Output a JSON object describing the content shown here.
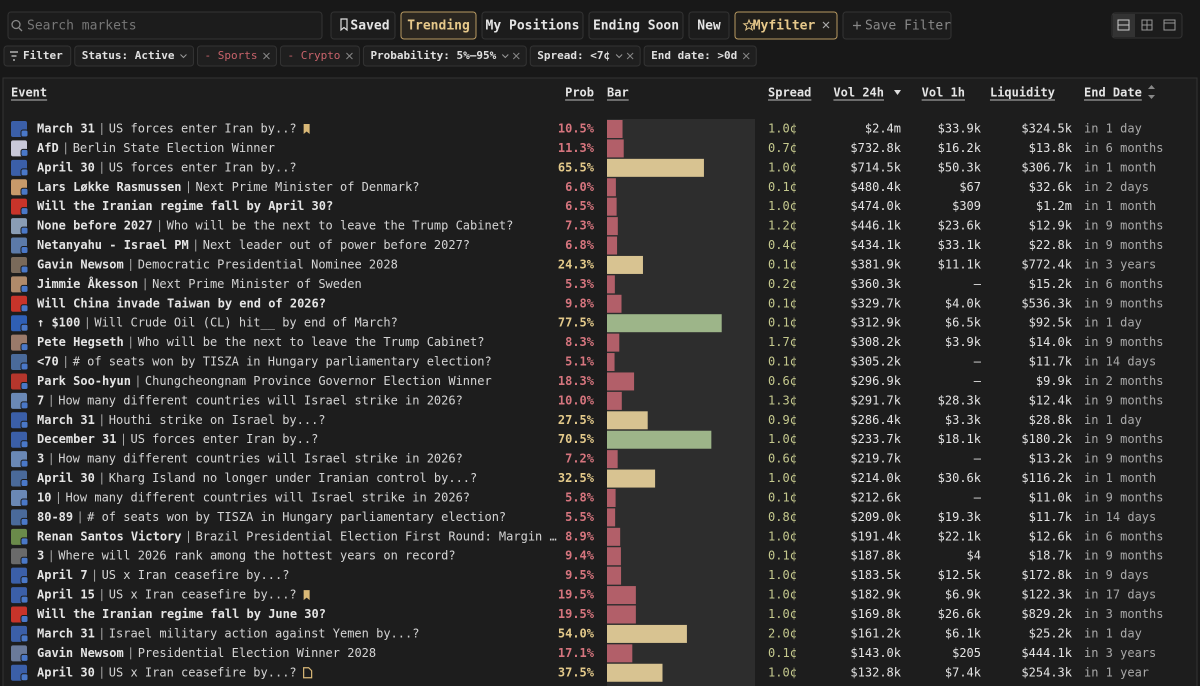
{
  "toolbar": {
    "search_placeholder": "Search markets",
    "tabs": [
      "Saved",
      "Trending",
      "My Positions",
      "Ending Soon",
      "New",
      "Myfilter",
      "Save Filter"
    ],
    "active_tab": "Trending",
    "saved_filter": "Myfilter"
  },
  "filters": [
    "Filter",
    "Status: Active",
    "- Sports",
    "- Crypto",
    "Probability: 5%–95%",
    "Spread: <7¢",
    "End date: >0d"
  ],
  "table": {
    "headers": {
      "event": "Event",
      "prob": "Prob",
      "bar": "Bar",
      "spread": "Spread",
      "vol24": "Vol 24h",
      "vol1": "Vol 1h",
      "liquidity": "Liquidity",
      "end": "End Date"
    },
    "bar_range": [
      0,
      100
    ],
    "palette": {
      "low": "#b25f69",
      "mid": "#d8c391",
      "high": "#9db589"
    },
    "text_palette": {
      "low": "#d6757e",
      "mid": "#e3c98a",
      "high": "#e3c98a"
    },
    "rows": [
      {
        "title": "March 31",
        "question": "US forces enter Iran by..?",
        "marker": "bookmark",
        "prob": {
          "value": 10.5,
          "label": "10.5%"
        },
        "tone": "low",
        "spread": "1.0¢",
        "vol24": "$2.4m",
        "vol1": "$33.9k",
        "liquidity": "$324.5k",
        "end": "in 1 day"
      },
      {
        "title": "AfD",
        "question": "Berlin State Election Winner",
        "prob": {
          "value": 11.3,
          "label": "11.3%"
        },
        "tone": "low",
        "spread": "0.7¢",
        "vol24": "$732.8k",
        "vol1": "$16.2k",
        "liquidity": "$13.8k",
        "end": "in 6 months"
      },
      {
        "title": "April 30",
        "question": "US forces enter Iran by..?",
        "prob": {
          "value": 65.5,
          "label": "65.5%"
        },
        "tone": "mid",
        "spread": "1.0¢",
        "vol24": "$714.5k",
        "vol1": "$50.3k",
        "liquidity": "$306.7k",
        "end": "in 1 month"
      },
      {
        "title": "Lars Løkke Rasmussen",
        "question": "Next Prime Minister of Denmark?",
        "prob": {
          "value": 6.0,
          "label": "6.0%"
        },
        "tone": "low",
        "spread": "0.1¢",
        "vol24": "$480.4k",
        "vol1": "$67",
        "liquidity": "$32.6k",
        "end": "in 2 days"
      },
      {
        "title": "Will the Iranian regime fall by April 30?",
        "prob": {
          "value": 6.5,
          "label": "6.5%"
        },
        "tone": "low",
        "spread": "1.0¢",
        "vol24": "$474.0k",
        "vol1": "$309",
        "liquidity": "$1.2m",
        "end": "in 1 month"
      },
      {
        "title": "None before 2027",
        "question": "Who will be the next to leave the Trump Cabinet?",
        "prob": {
          "value": 7.3,
          "label": "7.3%"
        },
        "tone": "low",
        "spread": "1.2¢",
        "vol24": "$446.1k",
        "vol1": "$23.6k",
        "liquidity": "$12.9k",
        "end": "in 9 months"
      },
      {
        "title": "Netanyahu - Israel PM",
        "question": "Next leader out of power before 2027?",
        "prob": {
          "value": 6.8,
          "label": "6.8%"
        },
        "tone": "low",
        "spread": "0.4¢",
        "vol24": "$434.1k",
        "vol1": "$33.1k",
        "liquidity": "$22.8k",
        "end": "in 9 months"
      },
      {
        "title": "Gavin Newsom",
        "question": "Democratic Presidential Nominee 2028",
        "prob": {
          "value": 24.3,
          "label": "24.3%"
        },
        "tone": "mid",
        "spread": "0.1¢",
        "vol24": "$381.9k",
        "vol1": "$11.1k",
        "liquidity": "$772.4k",
        "end": "in 3 years"
      },
      {
        "title": "Jimmie Åkesson",
        "question": "Next Prime Minister of Sweden",
        "prob": {
          "value": 5.3,
          "label": "5.3%"
        },
        "tone": "low",
        "spread": "0.2¢",
        "vol24": "$360.3k",
        "vol1": "—",
        "liquidity": "$15.2k",
        "end": "in 6 months"
      },
      {
        "title": "Will China invade Taiwan by end of 2026?",
        "prob": {
          "value": 9.8,
          "label": "9.8%"
        },
        "tone": "low",
        "spread": "0.1¢",
        "vol24": "$329.7k",
        "vol1": "$4.0k",
        "liquidity": "$536.3k",
        "end": "in 9 months"
      },
      {
        "title": "↑ $100",
        "question": "Will Crude Oil (CL) hit__ by end of March?",
        "prob": {
          "value": 77.5,
          "label": "77.5%"
        },
        "tone": "high",
        "spread": "0.1¢",
        "vol24": "$312.9k",
        "vol1": "$6.5k",
        "liquidity": "$92.5k",
        "end": "in 1 day"
      },
      {
        "title": "Pete Hegseth",
        "question": "Who will be the next to leave the Trump Cabinet?",
        "prob": {
          "value": 8.3,
          "label": "8.3%"
        },
        "tone": "low",
        "spread": "1.7¢",
        "vol24": "$308.2k",
        "vol1": "$3.9k",
        "liquidity": "$14.0k",
        "end": "in 9 months"
      },
      {
        "title": "<70",
        "question": "# of seats won by TISZA in Hungary parliamentary election?",
        "prob": {
          "value": 5.1,
          "label": "5.1%"
        },
        "tone": "low",
        "spread": "0.1¢",
        "vol24": "$305.2k",
        "vol1": "—",
        "liquidity": "$11.7k",
        "end": "in 14 days"
      },
      {
        "title": "Park Soo-hyun",
        "question": "Chungcheongnam Province Governor Election Winner",
        "prob": {
          "value": 18.3,
          "label": "18.3%"
        },
        "tone": "low",
        "spread": "0.6¢",
        "vol24": "$296.9k",
        "vol1": "—",
        "liquidity": "$9.9k",
        "end": "in 2 months"
      },
      {
        "title": "7",
        "question": "How many different countries will Israel strike in 2026?",
        "prob": {
          "value": 10.0,
          "label": "10.0%"
        },
        "tone": "low",
        "spread": "1.3¢",
        "vol24": "$291.7k",
        "vol1": "$28.3k",
        "liquidity": "$12.4k",
        "end": "in 9 months"
      },
      {
        "title": "March 31",
        "question": "Houthi strike on Israel by...?",
        "prob": {
          "value": 27.5,
          "label": "27.5%"
        },
        "tone": "mid",
        "spread": "0.9¢",
        "vol24": "$286.4k",
        "vol1": "$3.3k",
        "liquidity": "$28.8k",
        "end": "in 1 day"
      },
      {
        "title": "December 31",
        "question": "US forces enter Iran by..?",
        "prob": {
          "value": 70.5,
          "label": "70.5%"
        },
        "tone": "high",
        "spread": "1.0¢",
        "vol24": "$233.7k",
        "vol1": "$18.1k",
        "liquidity": "$180.2k",
        "end": "in 9 months"
      },
      {
        "title": "3",
        "question": "How many different countries will Israel strike in 2026?",
        "prob": {
          "value": 7.2,
          "label": "7.2%"
        },
        "tone": "low",
        "spread": "0.6¢",
        "vol24": "$219.7k",
        "vol1": "—",
        "liquidity": "$13.2k",
        "end": "in 9 months"
      },
      {
        "title": "April 30",
        "question": "Kharg Island no longer under Iranian control by...?",
        "prob": {
          "value": 32.5,
          "label": "32.5%"
        },
        "tone": "mid",
        "spread": "1.0¢",
        "vol24": "$214.0k",
        "vol1": "$30.6k",
        "liquidity": "$116.2k",
        "end": "in 1 month"
      },
      {
        "title": "10",
        "question": "How many different countries will Israel strike in 2026?",
        "prob": {
          "value": 5.8,
          "label": "5.8%"
        },
        "tone": "low",
        "spread": "0.1¢",
        "vol24": "$212.6k",
        "vol1": "—",
        "liquidity": "$11.0k",
        "end": "in 9 months"
      },
      {
        "title": "80-89",
        "question": "# of seats won by TISZA in Hungary parliamentary election?",
        "prob": {
          "value": 5.5,
          "label": "5.5%"
        },
        "tone": "low",
        "spread": "0.8¢",
        "vol24": "$209.0k",
        "vol1": "$19.3k",
        "liquidity": "$11.7k",
        "end": "in 14 days"
      },
      {
        "title": "Renan Santos Victory",
        "question": "Brazil Presidential Election First Round: Margin …",
        "prob": {
          "value": 8.9,
          "label": "8.9%"
        },
        "tone": "low",
        "spread": "1.0¢",
        "vol24": "$191.4k",
        "vol1": "$22.1k",
        "liquidity": "$12.6k",
        "end": "in 6 months"
      },
      {
        "title": "3",
        "question": "Where will 2026 rank among the hottest years on record?",
        "prob": {
          "value": 9.4,
          "label": "9.4%"
        },
        "tone": "low",
        "spread": "0.1¢",
        "vol24": "$187.8k",
        "vol1": "$4",
        "liquidity": "$18.7k",
        "end": "in 9 months"
      },
      {
        "title": "April 7",
        "question": "US x Iran ceasefire by...?",
        "prob": {
          "value": 9.5,
          "label": "9.5%"
        },
        "tone": "low",
        "spread": "1.0¢",
        "vol24": "$183.5k",
        "vol1": "$12.5k",
        "liquidity": "$172.8k",
        "end": "in 9 days"
      },
      {
        "title": "April 15",
        "question": "US x Iran ceasefire by...?",
        "marker": "bookmark",
        "prob": {
          "value": 19.5,
          "label": "19.5%"
        },
        "tone": "low",
        "spread": "1.0¢",
        "vol24": "$182.9k",
        "vol1": "$6.9k",
        "liquidity": "$122.3k",
        "end": "in 17 days"
      },
      {
        "title": "Will the Iranian regime fall by June 30?",
        "prob": {
          "value": 19.5,
          "label": "19.5%"
        },
        "tone": "low",
        "spread": "1.0¢",
        "vol24": "$169.8k",
        "vol1": "$26.6k",
        "liquidity": "$829.2k",
        "end": "in 3 months"
      },
      {
        "title": "March 31",
        "question": "Israel military action against Yemen by...?",
        "prob": {
          "value": 54.0,
          "label": "54.0%"
        },
        "tone": "mid",
        "spread": "2.0¢",
        "vol24": "$161.2k",
        "vol1": "$6.1k",
        "liquidity": "$25.2k",
        "end": "in 1 day"
      },
      {
        "title": "Gavin Newsom",
        "question": "Presidential Election Winner 2028",
        "prob": {
          "value": 17.1,
          "label": "17.1%"
        },
        "tone": "low",
        "spread": "0.1¢",
        "vol24": "$143.0k",
        "vol1": "$205",
        "liquidity": "$444.1k",
        "end": "in 3 years"
      },
      {
        "title": "April 30",
        "question": "US x Iran ceasefire by...?",
        "marker": "note",
        "prob": {
          "value": 37.5,
          "label": "37.5%"
        },
        "tone": "mid",
        "spread": "1.0¢",
        "vol24": "$132.8k",
        "vol1": "$7.4k",
        "liquidity": "$254.3k",
        "end": "in 1 year"
      }
    ]
  }
}
